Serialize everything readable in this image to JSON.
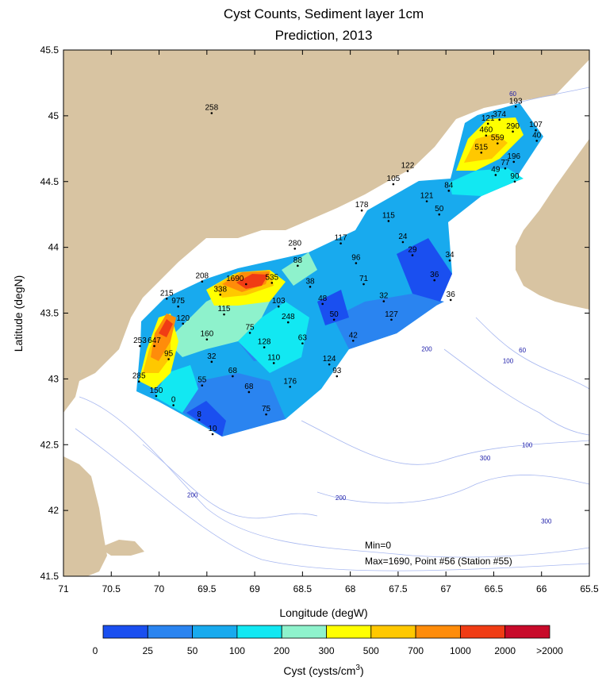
{
  "chart_data": {
    "type": "contour-map",
    "title": [
      "Cyst Counts, Sediment layer 1cm",
      "Prediction, 2013"
    ],
    "xlabel": "Longitude (degW)",
    "ylabel": "Latitude (degN)",
    "xlim": [
      71,
      65.5
    ],
    "ylim": [
      41.5,
      45.5
    ],
    "xticks": [
      "71",
      "70.5",
      "70",
      "69.5",
      "69",
      "68.5",
      "68",
      "67.5",
      "67",
      "66.5",
      "66",
      "65.5"
    ],
    "yticks": [
      "41.5",
      "42",
      "42.5",
      "43",
      "43.5",
      "44",
      "44.5",
      "45",
      "45.5"
    ],
    "stations": [
      {
        "lon": 69.45,
        "lat": 45.02,
        "label": "258"
      },
      {
        "lon": 66.27,
        "lat": 45.07,
        "label": "193"
      },
      {
        "lon": 66.56,
        "lat": 44.94,
        "label": "121"
      },
      {
        "lon": 66.44,
        "lat": 44.97,
        "label": "374"
      },
      {
        "lon": 66.06,
        "lat": 44.89,
        "label": "107"
      },
      {
        "lon": 66.3,
        "lat": 44.88,
        "label": "290"
      },
      {
        "lon": 66.58,
        "lat": 44.85,
        "label": "460"
      },
      {
        "lon": 66.46,
        "lat": 44.79,
        "label": "559"
      },
      {
        "lon": 66.05,
        "lat": 44.81,
        "label": "40"
      },
      {
        "lon": 66.63,
        "lat": 44.72,
        "label": "515"
      },
      {
        "lon": 66.29,
        "lat": 44.65,
        "label": "196"
      },
      {
        "lon": 66.38,
        "lat": 44.6,
        "label": "77"
      },
      {
        "lon": 66.48,
        "lat": 44.55,
        "label": "49"
      },
      {
        "lon": 66.28,
        "lat": 44.5,
        "label": "90"
      },
      {
        "lon": 67.4,
        "lat": 44.58,
        "label": "122"
      },
      {
        "lon": 67.55,
        "lat": 44.48,
        "label": "105"
      },
      {
        "lon": 66.97,
        "lat": 44.43,
        "label": "84"
      },
      {
        "lon": 67.2,
        "lat": 44.35,
        "label": "121"
      },
      {
        "lon": 67.88,
        "lat": 44.28,
        "label": "178"
      },
      {
        "lon": 67.07,
        "lat": 44.25,
        "label": "50"
      },
      {
        "lon": 67.6,
        "lat": 44.2,
        "label": "115"
      },
      {
        "lon": 68.1,
        "lat": 44.03,
        "label": "117"
      },
      {
        "lon": 67.45,
        "lat": 44.04,
        "label": "24"
      },
      {
        "lon": 68.58,
        "lat": 43.99,
        "label": "280"
      },
      {
        "lon": 67.35,
        "lat": 43.94,
        "label": "29"
      },
      {
        "lon": 66.96,
        "lat": 43.9,
        "label": "34"
      },
      {
        "lon": 68.55,
        "lat": 43.86,
        "label": "88"
      },
      {
        "lon": 67.94,
        "lat": 43.88,
        "label": "96"
      },
      {
        "lon": 69.55,
        "lat": 43.74,
        "label": "208"
      },
      {
        "lon": 69.09,
        "lat": 43.72,
        "label": "1690"
      },
      {
        "lon": 68.82,
        "lat": 43.73,
        "label": "535"
      },
      {
        "lon": 68.42,
        "lat": 43.7,
        "label": "38"
      },
      {
        "lon": 67.86,
        "lat": 43.72,
        "label": "71"
      },
      {
        "lon": 67.12,
        "lat": 43.75,
        "label": "36"
      },
      {
        "lon": 69.36,
        "lat": 43.64,
        "label": "338"
      },
      {
        "lon": 69.92,
        "lat": 43.61,
        "label": "215"
      },
      {
        "lon": 67.65,
        "lat": 43.59,
        "label": "32"
      },
      {
        "lon": 66.95,
        "lat": 43.6,
        "label": "36"
      },
      {
        "lon": 68.29,
        "lat": 43.57,
        "label": "48"
      },
      {
        "lon": 69.8,
        "lat": 43.55,
        "label": "975"
      },
      {
        "lon": 68.75,
        "lat": 43.55,
        "label": "103"
      },
      {
        "lon": 69.32,
        "lat": 43.49,
        "label": "115"
      },
      {
        "lon": 67.57,
        "lat": 43.45,
        "label": "127"
      },
      {
        "lon": 68.17,
        "lat": 43.45,
        "label": "50"
      },
      {
        "lon": 69.75,
        "lat": 43.42,
        "label": "120"
      },
      {
        "lon": 68.65,
        "lat": 43.43,
        "label": "248"
      },
      {
        "lon": 69.05,
        "lat": 43.35,
        "label": "75"
      },
      {
        "lon": 69.5,
        "lat": 43.3,
        "label": "160"
      },
      {
        "lon": 70.2,
        "lat": 43.25,
        "label": "253"
      },
      {
        "lon": 67.97,
        "lat": 43.29,
        "label": "42"
      },
      {
        "lon": 68.5,
        "lat": 43.27,
        "label": "63"
      },
      {
        "lon": 70.05,
        "lat": 43.25,
        "label": "647"
      },
      {
        "lon": 68.9,
        "lat": 43.24,
        "label": "128"
      },
      {
        "lon": 69.9,
        "lat": 43.15,
        "label": "95"
      },
      {
        "lon": 69.45,
        "lat": 43.13,
        "label": "32"
      },
      {
        "lon": 68.8,
        "lat": 43.12,
        "label": "110"
      },
      {
        "lon": 68.22,
        "lat": 43.11,
        "label": "124"
      },
      {
        "lon": 69.23,
        "lat": 43.02,
        "label": "68"
      },
      {
        "lon": 68.14,
        "lat": 43.02,
        "label": "93"
      },
      {
        "lon": 70.21,
        "lat": 42.98,
        "label": "285"
      },
      {
        "lon": 69.55,
        "lat": 42.95,
        "label": "55"
      },
      {
        "lon": 68.63,
        "lat": 42.94,
        "label": "176"
      },
      {
        "lon": 69.06,
        "lat": 42.9,
        "label": "68"
      },
      {
        "lon": 70.03,
        "lat": 42.87,
        "label": "150"
      },
      {
        "lon": 69.85,
        "lat": 42.8,
        "label": "0"
      },
      {
        "lon": 68.88,
        "lat": 42.73,
        "label": "75"
      },
      {
        "lon": 69.58,
        "lat": 42.69,
        "label": "8"
      },
      {
        "lon": 69.44,
        "lat": 42.58,
        "label": "10"
      }
    ],
    "depth_labels": [
      {
        "lon": 66.3,
        "lat": 45.15,
        "label": "60"
      },
      {
        "lon": 66.2,
        "lat": 43.2,
        "label": "60"
      },
      {
        "lon": 66.35,
        "lat": 43.12,
        "label": "100"
      },
      {
        "lon": 67.2,
        "lat": 43.21,
        "label": "200"
      },
      {
        "lon": 66.15,
        "lat": 42.48,
        "label": "100"
      },
      {
        "lon": 66.59,
        "lat": 42.38,
        "label": "300"
      },
      {
        "lon": 69.65,
        "lat": 42.1,
        "label": "200"
      },
      {
        "lon": 68.1,
        "lat": 42.08,
        "label": "200"
      },
      {
        "lon": 65.95,
        "lat": 41.9,
        "label": "300"
      }
    ],
    "legend": {
      "title": "Cyst (cysts/cm",
      "title_sup": "3",
      "title_end": ")",
      "colors": [
        "#1a4ff0",
        "#2a84f0",
        "#18aaee",
        "#12e8f2",
        "#8ef2cc",
        "#ffff00",
        "#ffc800",
        "#ff8c0a",
        "#f03c14",
        "#c80a2a"
      ],
      "tick_labels": [
        "0",
        "25",
        "50",
        "100",
        "200",
        "300",
        "500",
        "700",
        "1000",
        "2000",
        ">2000"
      ]
    },
    "annotations": [
      "Min=0",
      "Max=1690, Point #56 (Station #55)"
    ]
  },
  "colors": {
    "land": "#d8c4a2",
    "water": "#ffffff",
    "bathymetry": "#a8b8f0"
  }
}
